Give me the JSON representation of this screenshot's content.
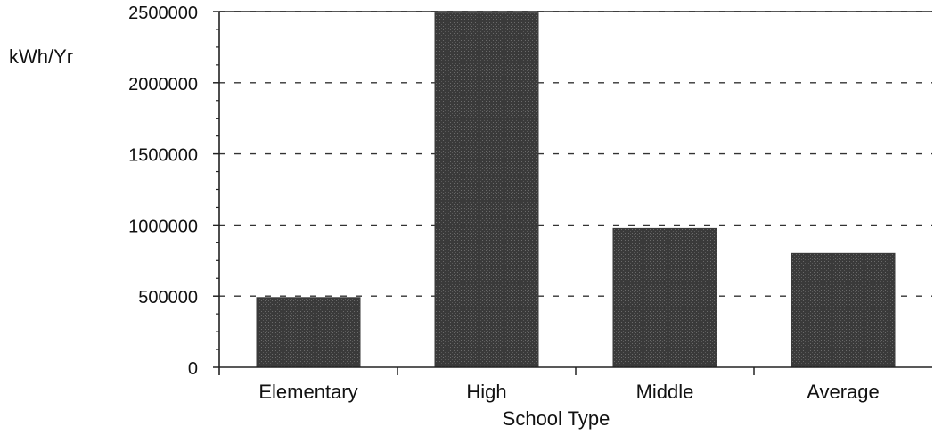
{
  "chart_data": {
    "type": "bar",
    "title": "",
    "xlabel": "School Type",
    "ylabel": "kWh/Yr",
    "categories": [
      "Elementary",
      "High",
      "Middle",
      "Average"
    ],
    "series": [
      {
        "values": [
          490000,
          2490000,
          975000,
          800000
        ]
      }
    ],
    "ylim": [
      0,
      2500000
    ],
    "yticks": [
      {
        "value": 0,
        "label": "0"
      },
      {
        "value": 500000,
        "label": "500000"
      },
      {
        "value": 1000000,
        "label": "1000000"
      },
      {
        "value": 1500000,
        "label": "1500000"
      },
      {
        "value": 2000000,
        "label": "2000000"
      },
      {
        "value": 2500000,
        "label": "2500000"
      }
    ],
    "grid": "horizontal dashed",
    "legend": "none",
    "colors": {
      "bar": "#3a3a3a",
      "axis": "#222222",
      "grid": "#333333"
    }
  }
}
